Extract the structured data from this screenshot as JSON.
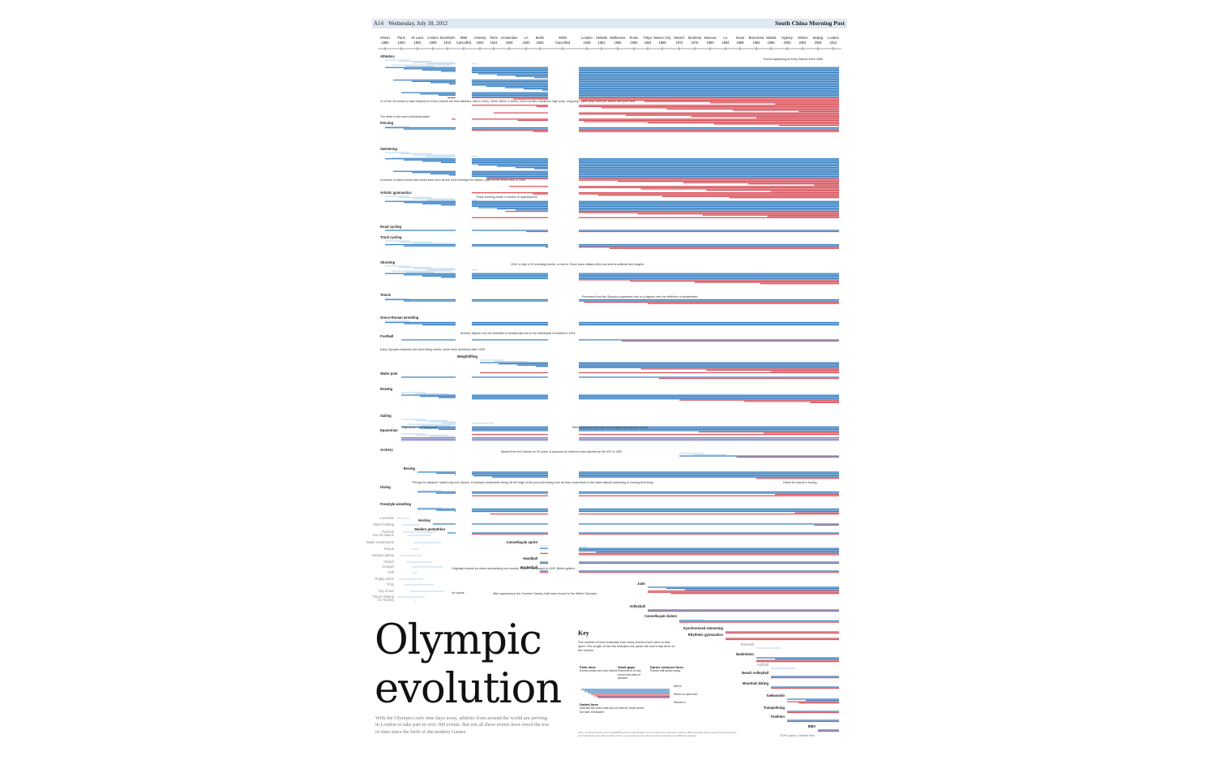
{
  "masthead": {
    "page": "A14",
    "date": "Wednesday, July 18, 2012",
    "publication": "South China Morning Post"
  },
  "title_line1": "Olympic",
  "title_line2": "evolution",
  "intro": "With the Olympics only nine days away, athletes from around the world are arriving in London to take part in over 300 events. But not all these events have stood the test of time since the birth of the modern Games.",
  "colors": {
    "men": "#3b82c4",
    "women": "#d9535d",
    "mixed": "#8a8fc4",
    "retired": "#c6dcef",
    "gap": "#b9b9b9"
  },
  "chart_data": {
    "type": "table",
    "games": [
      {
        "city": "Athens",
        "year": "1896"
      },
      {
        "city": "Paris",
        "year": "1900"
      },
      {
        "city": "St Louis",
        "year": "1904"
      },
      {
        "city": "London",
        "year": "1908"
      },
      {
        "city": "Stockholm",
        "year": "1912"
      },
      {
        "city": "WWI",
        "year": "Cancelled"
      },
      {
        "city": "Antwerp",
        "year": "1920"
      },
      {
        "city": "Paris",
        "year": "1924"
      },
      {
        "city": "Amsterdam",
        "year": "1928"
      },
      {
        "city": "LA",
        "year": "1932"
      },
      {
        "city": "Berlin",
        "year": "1936"
      },
      {
        "city": "WWII",
        "year": "Cancelled"
      },
      {
        "city": "London",
        "year": "1948"
      },
      {
        "city": "Helsinki",
        "year": "1952"
      },
      {
        "city": "Melbourne",
        "year": "1956"
      },
      {
        "city": "Rome",
        "year": "1960"
      },
      {
        "city": "Tokyo",
        "year": "1964"
      },
      {
        "city": "Mexico City",
        "year": "1968"
      },
      {
        "city": "Munich",
        "year": "1972"
      },
      {
        "city": "Montreal",
        "year": "1976"
      },
      {
        "city": "Moscow",
        "year": "1980"
      },
      {
        "city": "LA",
        "year": "1984"
      },
      {
        "city": "Seoul",
        "year": "1988"
      },
      {
        "city": "Barcelona",
        "year": "1992"
      },
      {
        "city": "Atlanta",
        "year": "1996"
      },
      {
        "city": "Sydney",
        "year": "2000"
      },
      {
        "city": "Athens",
        "year": "2004"
      },
      {
        "city": "Beijing",
        "year": "2008"
      },
      {
        "city": "London",
        "year": "2012"
      }
    ],
    "sports": [
      {
        "name": "Athletics",
        "start": 1896,
        "men": 24,
        "women": 23,
        "retired": 6,
        "alt": "left"
      },
      {
        "name": "Fencing",
        "start": 1896,
        "men": 2,
        "women": 2,
        "retired": 1,
        "alt": "left"
      },
      {
        "name": "Swimming",
        "start": 1896,
        "men": 16,
        "women": 16,
        "retired": 5,
        "alt": "left"
      },
      {
        "name": "Artistic gymnastics",
        "start": 1896,
        "men": 8,
        "women": 6,
        "retired": 4,
        "alt": "left"
      },
      {
        "name": "Road cycling",
        "start": 1896,
        "men": 1,
        "women": 1,
        "retired": 0,
        "alt": "left"
      },
      {
        "name": "Track cycling",
        "start": 1896,
        "men": 2,
        "women": 2,
        "retired": 3,
        "alt": "left"
      },
      {
        "name": "Shooting",
        "start": 1896,
        "men": 5,
        "women": 4,
        "retired": 6,
        "alt": "left"
      },
      {
        "name": "Tennis",
        "start": 1896,
        "men": 2,
        "women": 2,
        "retired": 1,
        "alt": "left"
      },
      {
        "name": "Greco-Roman wrestling",
        "start": 1896,
        "men": 3,
        "women": 0,
        "retired": 1,
        "alt": "left"
      },
      {
        "name": "Football",
        "start": 1900,
        "men": 1,
        "women": 1,
        "retired": 0,
        "alt": "left"
      },
      {
        "name": "Weightlifting",
        "start": 1920,
        "men": 5,
        "women": 4,
        "retired": 2,
        "alt": "mid"
      },
      {
        "name": "Water polo",
        "start": 1900,
        "men": 1,
        "women": 1,
        "retired": 0,
        "alt": "left"
      },
      {
        "name": "Rowing",
        "start": 1900,
        "men": 4,
        "women": 3,
        "retired": 2,
        "alt": "left"
      },
      {
        "name": "Sailing",
        "start": 1900,
        "men": 4,
        "women": 3,
        "retired": 6,
        "alt": "left"
      },
      {
        "name": "Equestrian",
        "start": 1900,
        "men": 0,
        "women": 0,
        "mixed": 3,
        "retired": 3,
        "alt": "left"
      },
      {
        "name": "Archery",
        "start": 1972,
        "men": 1,
        "women": 1,
        "retired": 2,
        "alt": "left"
      },
      {
        "name": "Boxing",
        "start": 1904,
        "men": 5,
        "women": 1,
        "retired": 0,
        "alt": "mid"
      },
      {
        "name": "Diving",
        "start": 1904,
        "men": 2,
        "women": 2,
        "retired": 1,
        "alt": "left"
      },
      {
        "name": "Freestyle wrestling",
        "start": 1904,
        "men": 3,
        "women": 2,
        "retired": 1,
        "alt": "left"
      },
      {
        "name": "Hockey",
        "start": 1908,
        "men": 1,
        "women": 1,
        "retired": 0,
        "alt": "mid"
      },
      {
        "name": "Modern pentathlon",
        "start": 1912,
        "men": 1,
        "women": 1,
        "retired": 0,
        "alt": "mid"
      },
      {
        "name": "Canoe/kayak sprint",
        "start": 1936,
        "men": 4,
        "women": 2,
        "retired": 2,
        "alt": "mid"
      },
      {
        "name": "Handball",
        "start": 1936,
        "men": 1,
        "women": 1,
        "retired": 0,
        "alt": "mid"
      },
      {
        "name": "Basketball",
        "start": 1936,
        "men": 1,
        "women": 1,
        "retired": 0,
        "alt": "mid"
      },
      {
        "name": "Judo",
        "start": 1964,
        "men": 3,
        "women": 3,
        "retired": 0,
        "alt": "right"
      },
      {
        "name": "Volleyball",
        "start": 1964,
        "men": 1,
        "women": 1,
        "retired": 0,
        "alt": "right"
      },
      {
        "name": "Canoe/kayak slalom",
        "start": 1972,
        "men": 1,
        "women": 1,
        "retired": 1,
        "alt": "right"
      },
      {
        "name": "Synchronised swimming",
        "start": 1984,
        "men": 0,
        "women": 2,
        "retired": 0,
        "alt": "right"
      },
      {
        "name": "Rhythmic gymnastics",
        "start": 1984,
        "men": 0,
        "women": 2,
        "retired": 0,
        "alt": "right"
      },
      {
        "name": "Baseball",
        "start": 1992,
        "men": 0,
        "women": 0,
        "retired": 1,
        "alt": "right",
        "removed": true
      },
      {
        "name": "Badminton",
        "start": 1992,
        "men": 2,
        "women": 2,
        "retired": 0,
        "alt": "right"
      },
      {
        "name": "Softball",
        "start": 1996,
        "men": 0,
        "women": 0,
        "retired": 1,
        "alt": "right",
        "removed": true
      },
      {
        "name": "Beach volleyball",
        "start": 1996,
        "men": 1,
        "women": 1,
        "retired": 0,
        "alt": "right"
      },
      {
        "name": "Mountain biking",
        "start": 1996,
        "men": 1,
        "women": 1,
        "retired": 0,
        "alt": "right"
      },
      {
        "name": "Taekwondo",
        "start": 2000,
        "men": 2,
        "women": 2,
        "retired": 0,
        "alt": "right"
      },
      {
        "name": "Trampolining",
        "start": 2000,
        "men": 1,
        "women": 1,
        "retired": 0,
        "alt": "right"
      },
      {
        "name": "Triathlon",
        "start": 2000,
        "men": 1,
        "women": 1,
        "retired": 0,
        "alt": "right"
      },
      {
        "name": "BMX",
        "start": 2008,
        "men": 1,
        "women": 1,
        "retired": 0,
        "alt": "right"
      }
    ],
    "retired_sports": [
      "Lacrosse",
      "Motor boating",
      "Jeu de paume",
      "Water motorsports",
      "Roque",
      "Basque pelota",
      "Cricket",
      "Croquet",
      "Golf",
      "Rugby union",
      "Polo",
      "Tug of war",
      "Ice hockey",
      "Figure skating",
      "Rackets"
    ],
    "annotations": {
      "athletics_note": "Events appearing at every Games since 1896",
      "athletics_events": "12 of the 15 events to have featured in every Games are from athletics. Men's 100m, 400m, 800m, 1,500m, 110m hurdles, marathon, high jump, long jump, triple jump, shot put, discus and pole vault",
      "fencing_note": "The other is the men's individual sabre",
      "swimming_note": "A number of early events were short-lived such as the 100m freestyle for sailors, open to the Greek navy in 1896",
      "gymnastics_note": "Rope climbing made a number of appearances",
      "shooting_note": "1920: a high of 21 shooting events, or men's. Some used military rifles and shot at artificial deer targets",
      "tennis_note": "Removed from the Olympic programme due to a dispute over the definition of amateurism",
      "football_note": "Another dispute over the definition of amateurism led to the withdrawal of football in 1932",
      "weightlifting_note": "Early Olympics featured one-hand lifting events, which were abolished after 1928",
      "equestrian_note1": "\"High jump\" and \"long jump\"",
      "equestrian_note2": "Men's individual and team events gradually became mixed",
      "archery_note": "Absent from the Games for 52 years. A proposal for inclusion was rejected by the IOC in 1952",
      "boxing_note": "Debut for women's boxing",
      "diving_note": "\"Plunge for distance\" lasted only one Games. It involved contestants diving off the edge of the pool and seeing how far they could travel in the water without swimming or moving their body",
      "retired_note": "Originally entered by clubs representing one country. Cricket was played in 1900. British golfers...",
      "winter_note": "After appearing in the Summer Games, both were moved to the Winter Olympics",
      "ice_label": "Ice sports"
    }
  },
  "key": {
    "title": "Key",
    "description": "The number of lines indicates how many events there were in that sport. The length of the line indicates the years the event has been in the Games",
    "faint_title": "Faint lines",
    "faint_text": "Events which are now retired",
    "gaps_title": "Small gaps",
    "gaps_text": "Retirement of one event and start of another",
    "darker_title": "Darker coloured lines",
    "darker_text": "Events still active today",
    "dotted_title": "Dotted lines",
    "dotted_text": "Indicate the event was put on hold for those years but later reinstated",
    "mens": "Men's",
    "mixed": "Mixed or open sex",
    "womens": "Women's"
  },
  "notes": "Note: In various sports, some weightlifting events and divisions were merged. For example in Athens 1896 and early Games events involving teams and individuals were often combined into one programme line where the lines have been simplified for display.",
  "credit": "SCMP graphic: Graphics desk"
}
